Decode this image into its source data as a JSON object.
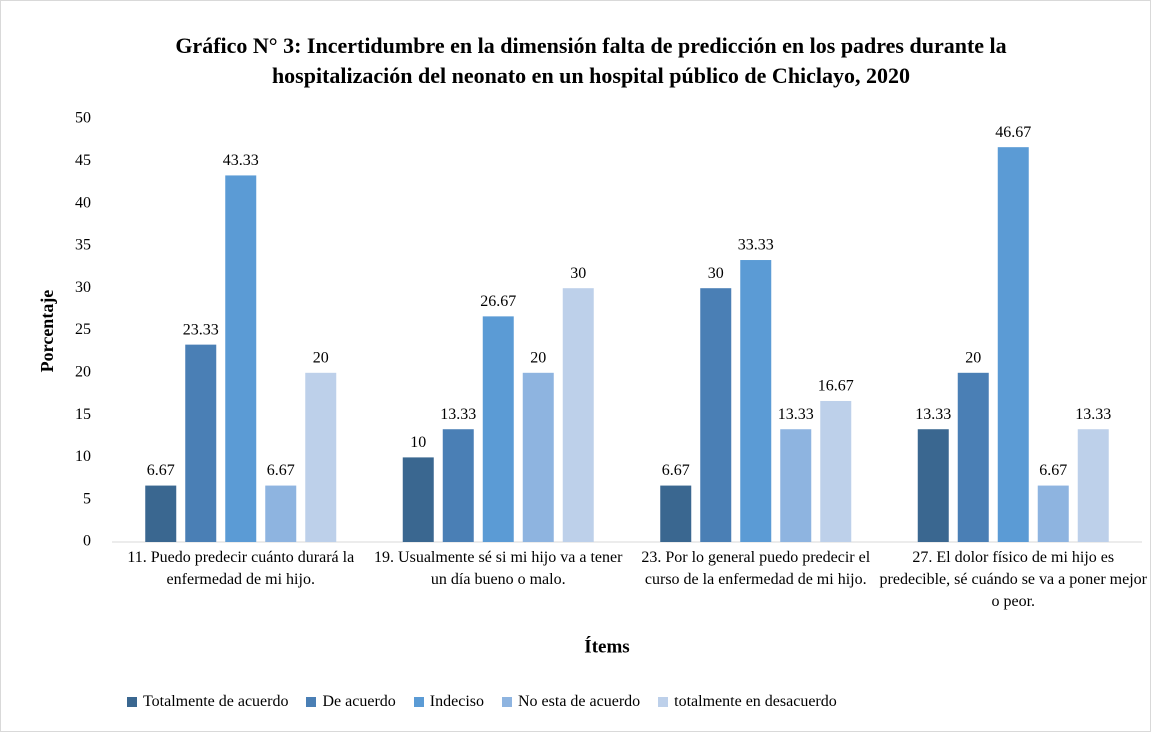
{
  "chart_data": {
    "type": "bar",
    "title": "Gráfico N° 3: Incertidumbre en la dimensión falta de predicción en los padres durante la hospitalización del neonato en un hospital público de Chiclayo, 2020",
    "x_label": "Ítems",
    "y_label": "Porcentaje",
    "categories": [
      "11. Puedo predecir cuánto durará la enfermedad de mi hijo.",
      "19. Usualmente sé si mi hijo va a tener un día bueno o malo.",
      "23. Por lo general puedo predecir el curso de la enfermedad de mi hijo.",
      "27. El dolor físico de mi hijo es predecible, sé cuándo se va a poner mejor o peor."
    ],
    "series": [
      {
        "name": "Totalmente de acuerdo",
        "color": "#3a6790",
        "values": [
          6.67,
          10,
          6.67,
          13.33
        ]
      },
      {
        "name": "De acuerdo",
        "color": "#4a7fb5",
        "values": [
          23.33,
          13.33,
          30,
          20
        ]
      },
      {
        "name": "Indeciso",
        "color": "#5b9bd5",
        "values": [
          43.33,
          26.67,
          33.33,
          46.67
        ]
      },
      {
        "name": "No esta de acuerdo",
        "color": "#8eb4e0",
        "values": [
          6.67,
          20,
          13.33,
          6.67
        ]
      },
      {
        "name": "totalmente en desacuerdo",
        "color": "#bdd0ea",
        "values": [
          20,
          30,
          16.67,
          13.33
        ]
      }
    ],
    "ylim": [
      0,
      50
    ],
    "yticks": [
      0,
      5,
      10,
      15,
      20,
      25,
      30,
      35,
      40,
      45,
      50
    ],
    "grid": false,
    "legend": "bottom"
  }
}
